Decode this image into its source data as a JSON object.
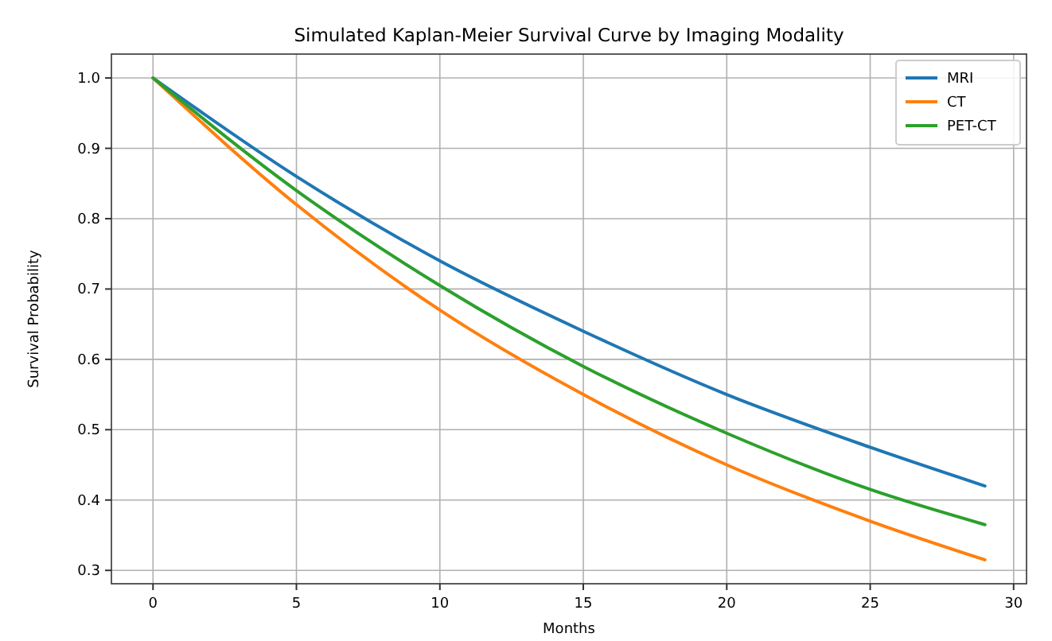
{
  "chart_data": {
    "type": "line",
    "title": "Simulated Kaplan-Meier Survival Curve by Imaging Modality",
    "xlabel": "Months",
    "ylabel": "Survival Probability",
    "x": [
      0,
      5,
      10,
      15,
      20,
      25,
      29
    ],
    "series": [
      {
        "name": "MRI",
        "color": "#1f77b4",
        "values": [
          1.0,
          0.86,
          0.74,
          0.64,
          0.55,
          0.475,
          0.42
        ]
      },
      {
        "name": "CT",
        "color": "#ff7f0e",
        "values": [
          1.0,
          0.82,
          0.67,
          0.55,
          0.45,
          0.37,
          0.315
        ]
      },
      {
        "name": "PET-CT",
        "color": "#2ca02c",
        "values": [
          1.0,
          0.84,
          0.705,
          0.59,
          0.495,
          0.415,
          0.365
        ]
      }
    ],
    "xlim": [
      -1.45,
      30.45
    ],
    "ylim": [
      0.281,
      1.034
    ],
    "xticks": [
      0,
      5,
      10,
      15,
      20,
      25,
      30
    ],
    "yticks": [
      {
        "value": 0.3,
        "label": "0.3"
      },
      {
        "value": 0.4,
        "label": "0.4"
      },
      {
        "value": 0.5,
        "label": "0.5"
      },
      {
        "value": 0.6,
        "label": "0.6"
      },
      {
        "value": 0.7,
        "label": "0.7"
      },
      {
        "value": 0.8,
        "label": "0.8"
      },
      {
        "value": 0.9,
        "label": "0.9"
      },
      {
        "value": 1.0,
        "label": "1.0"
      }
    ],
    "grid": true,
    "legend": "top right",
    "marker": "none",
    "line_style": "solid"
  }
}
